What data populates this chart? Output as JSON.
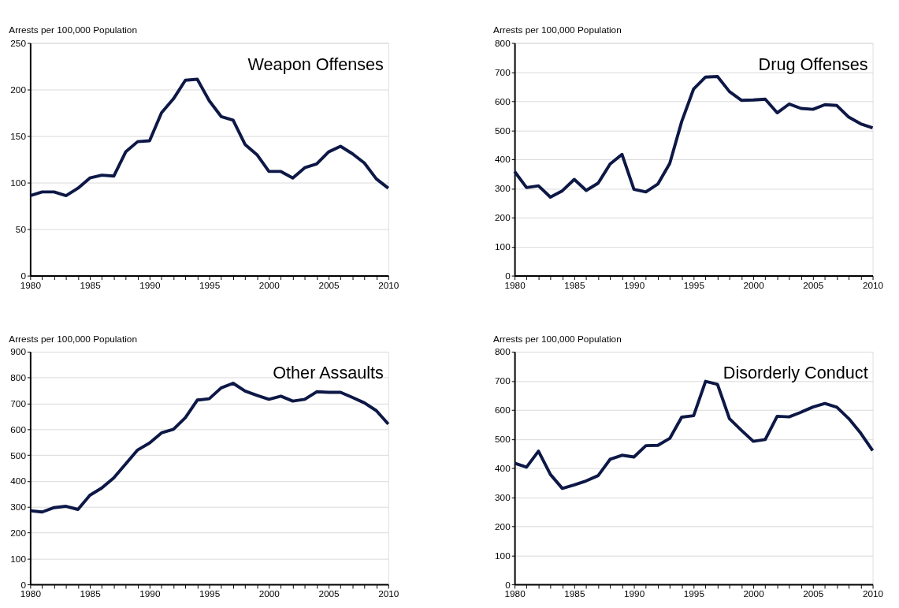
{
  "chart_data": [
    {
      "type": "line",
      "title": "Weapon Offenses",
      "ylabel": "Arrests per 100,000 Population",
      "x": [
        1980,
        1981,
        1982,
        1983,
        1984,
        1985,
        1986,
        1987,
        1988,
        1989,
        1990,
        1991,
        1992,
        1993,
        1994,
        1995,
        1996,
        1997,
        1998,
        1999,
        2000,
        2001,
        2002,
        2003,
        2004,
        2005,
        2006,
        2007,
        2008,
        2009,
        2010
      ],
      "series": [
        {
          "color": "#0d1846",
          "values": [
            86,
            90,
            90,
            86,
            94,
            105,
            108,
            107,
            133,
            144,
            145,
            175,
            190,
            210,
            211,
            188,
            171,
            167,
            141,
            130,
            112,
            112,
            105,
            116,
            120,
            133,
            139,
            131,
            121,
            104,
            94
          ]
        }
      ],
      "xlim": [
        1980,
        2010
      ],
      "xticks": [
        1980,
        {
          "value": 1981,
          "label": null
        },
        {
          "value": 1982,
          "label": null
        },
        {
          "value": 1983,
          "label": null
        },
        {
          "value": 1984,
          "label": null
        },
        1985,
        {
          "value": 1986,
          "label": null
        },
        {
          "value": 1987,
          "label": null
        },
        {
          "value": 1988,
          "label": null
        },
        {
          "value": 1989,
          "label": null
        },
        1990,
        {
          "value": 1991,
          "label": null
        },
        {
          "value": 1992,
          "label": null
        },
        {
          "value": 1993,
          "label": null
        },
        {
          "value": 1994,
          "label": null
        },
        1995,
        {
          "value": 1996,
          "label": null
        },
        {
          "value": 1997,
          "label": null
        },
        {
          "value": 1998,
          "label": null
        },
        {
          "value": 1999,
          "label": null
        },
        2000,
        {
          "value": 2001,
          "label": null
        },
        {
          "value": 2002,
          "label": null
        },
        {
          "value": 2003,
          "label": null
        },
        {
          "value": 2004,
          "label": null
        },
        2005,
        {
          "value": 2006,
          "label": null
        },
        {
          "value": 2007,
          "label": null
        },
        {
          "value": 2008,
          "label": null
        },
        {
          "value": 2009,
          "label": null
        },
        2010
      ],
      "ylim": [
        0,
        250
      ],
      "yticks": [
        0,
        50,
        100,
        150,
        200,
        250
      ],
      "grid": "y",
      "marker": "none",
      "line_style": "solid"
    },
    {
      "type": "line",
      "title": "Drug Offenses",
      "ylabel": "Arrests per 100,000 Population",
      "x": [
        1980,
        1981,
        1982,
        1983,
        1984,
        1985,
        1986,
        1987,
        1988,
        1989,
        1990,
        1991,
        1992,
        1993,
        1994,
        1995,
        1996,
        1997,
        1998,
        1999,
        2000,
        2001,
        2002,
        2003,
        2004,
        2005,
        2006,
        2007,
        2008,
        2009,
        2010
      ],
      "series": [
        {
          "color": "#0d1846",
          "values": [
            358,
            303,
            309,
            270,
            292,
            331,
            293,
            318,
            384,
            417,
            297,
            288,
            315,
            386,
            530,
            642,
            683,
            685,
            633,
            603,
            604,
            607,
            560,
            590,
            575,
            572,
            588,
            585,
            545,
            522,
            508
          ]
        }
      ],
      "xlim": [
        1980,
        2010
      ],
      "xticks": [
        1980,
        {
          "value": 1981,
          "label": null
        },
        {
          "value": 1982,
          "label": null
        },
        {
          "value": 1983,
          "label": null
        },
        {
          "value": 1984,
          "label": null
        },
        1985,
        {
          "value": 1986,
          "label": null
        },
        {
          "value": 1987,
          "label": null
        },
        {
          "value": 1988,
          "label": null
        },
        {
          "value": 1989,
          "label": null
        },
        1990,
        {
          "value": 1991,
          "label": null
        },
        {
          "value": 1992,
          "label": null
        },
        {
          "value": 1993,
          "label": null
        },
        {
          "value": 1994,
          "label": null
        },
        1995,
        {
          "value": 1996,
          "label": null
        },
        {
          "value": 1997,
          "label": null
        },
        {
          "value": 1998,
          "label": null
        },
        {
          "value": 1999,
          "label": null
        },
        2000,
        {
          "value": 2001,
          "label": null
        },
        {
          "value": 2002,
          "label": null
        },
        {
          "value": 2003,
          "label": null
        },
        {
          "value": 2004,
          "label": null
        },
        2005,
        {
          "value": 2006,
          "label": null
        },
        {
          "value": 2007,
          "label": null
        },
        {
          "value": 2008,
          "label": null
        },
        {
          "value": 2009,
          "label": null
        },
        2010
      ],
      "ylim": [
        0,
        800
      ],
      "yticks": [
        0,
        100,
        200,
        300,
        400,
        500,
        600,
        700,
        800
      ],
      "grid": "y",
      "marker": "none",
      "line_style": "solid"
    },
    {
      "type": "line",
      "title": "Other Assaults",
      "ylabel": "Arrests per 100,000 Population",
      "x": [
        1980,
        1981,
        1982,
        1983,
        1984,
        1985,
        1986,
        1987,
        1988,
        1989,
        1990,
        1991,
        1992,
        1993,
        1994,
        1995,
        1996,
        1997,
        1998,
        1999,
        2000,
        2001,
        2002,
        2003,
        2004,
        2005,
        2006,
        2007,
        2008,
        2009,
        2010
      ],
      "series": [
        {
          "color": "#0d1846",
          "values": [
            285,
            280,
            297,
            302,
            290,
            345,
            373,
            412,
            466,
            520,
            547,
            586,
            600,
            645,
            713,
            718,
            760,
            778,
            748,
            731,
            716,
            728,
            709,
            716,
            745,
            743,
            743,
            723,
            702,
            672,
            620
          ]
        }
      ],
      "xlim": [
        1980,
        2010
      ],
      "xticks": [
        1980,
        {
          "value": 1981,
          "label": null
        },
        {
          "value": 1982,
          "label": null
        },
        {
          "value": 1983,
          "label": null
        },
        {
          "value": 1984,
          "label": null
        },
        1985,
        {
          "value": 1986,
          "label": null
        },
        {
          "value": 1987,
          "label": null
        },
        {
          "value": 1988,
          "label": null
        },
        {
          "value": 1989,
          "label": null
        },
        1990,
        {
          "value": 1991,
          "label": null
        },
        {
          "value": 1992,
          "label": null
        },
        {
          "value": 1993,
          "label": null
        },
        {
          "value": 1994,
          "label": null
        },
        1995,
        {
          "value": 1996,
          "label": null
        },
        {
          "value": 1997,
          "label": null
        },
        {
          "value": 1998,
          "label": null
        },
        {
          "value": 1999,
          "label": null
        },
        2000,
        {
          "value": 2001,
          "label": null
        },
        {
          "value": 2002,
          "label": null
        },
        {
          "value": 2003,
          "label": null
        },
        {
          "value": 2004,
          "label": null
        },
        2005,
        {
          "value": 2006,
          "label": null
        },
        {
          "value": 2007,
          "label": null
        },
        {
          "value": 2008,
          "label": null
        },
        {
          "value": 2009,
          "label": null
        },
        2010
      ],
      "ylim": [
        0,
        900
      ],
      "yticks": [
        0,
        100,
        200,
        300,
        400,
        500,
        600,
        700,
        800,
        900
      ],
      "grid": "y",
      "marker": "none",
      "line_style": "solid"
    },
    {
      "type": "line",
      "title": "Disorderly Conduct",
      "ylabel": "Arrests per 100,000 Population",
      "x": [
        1980,
        1981,
        1982,
        1983,
        1984,
        1985,
        1986,
        1987,
        1988,
        1989,
        1990,
        1991,
        1992,
        1993,
        1994,
        1995,
        1996,
        1997,
        1998,
        1999,
        2000,
        2001,
        2002,
        2003,
        2004,
        2005,
        2006,
        2007,
        2008,
        2009,
        2010
      ],
      "series": [
        {
          "color": "#0d1846",
          "values": [
            417,
            403,
            458,
            378,
            330,
            342,
            356,
            374,
            430,
            444,
            438,
            477,
            478,
            502,
            575,
            580,
            698,
            688,
            570,
            530,
            492,
            498,
            578,
            576,
            592,
            610,
            622,
            609,
            570,
            520,
            460
          ]
        }
      ],
      "xlim": [
        1980,
        2010
      ],
      "xticks": [
        1980,
        {
          "value": 1981,
          "label": null
        },
        {
          "value": 1982,
          "label": null
        },
        {
          "value": 1983,
          "label": null
        },
        {
          "value": 1984,
          "label": null
        },
        1985,
        {
          "value": 1986,
          "label": null
        },
        {
          "value": 1987,
          "label": null
        },
        {
          "value": 1988,
          "label": null
        },
        {
          "value": 1989,
          "label": null
        },
        1990,
        {
          "value": 1991,
          "label": null
        },
        {
          "value": 1992,
          "label": null
        },
        {
          "value": 1993,
          "label": null
        },
        {
          "value": 1994,
          "label": null
        },
        1995,
        {
          "value": 1996,
          "label": null
        },
        {
          "value": 1997,
          "label": null
        },
        {
          "value": 1998,
          "label": null
        },
        {
          "value": 1999,
          "label": null
        },
        2000,
        {
          "value": 2001,
          "label": null
        },
        {
          "value": 2002,
          "label": null
        },
        {
          "value": 2003,
          "label": null
        },
        {
          "value": 2004,
          "label": null
        },
        2005,
        {
          "value": 2006,
          "label": null
        },
        {
          "value": 2007,
          "label": null
        },
        {
          "value": 2008,
          "label": null
        },
        {
          "value": 2009,
          "label": null
        },
        2010
      ],
      "ylim": [
        0,
        800
      ],
      "yticks": [
        0,
        100,
        200,
        300,
        400,
        500,
        600,
        700,
        800
      ],
      "grid": "y",
      "marker": "none",
      "line_style": "solid"
    }
  ]
}
